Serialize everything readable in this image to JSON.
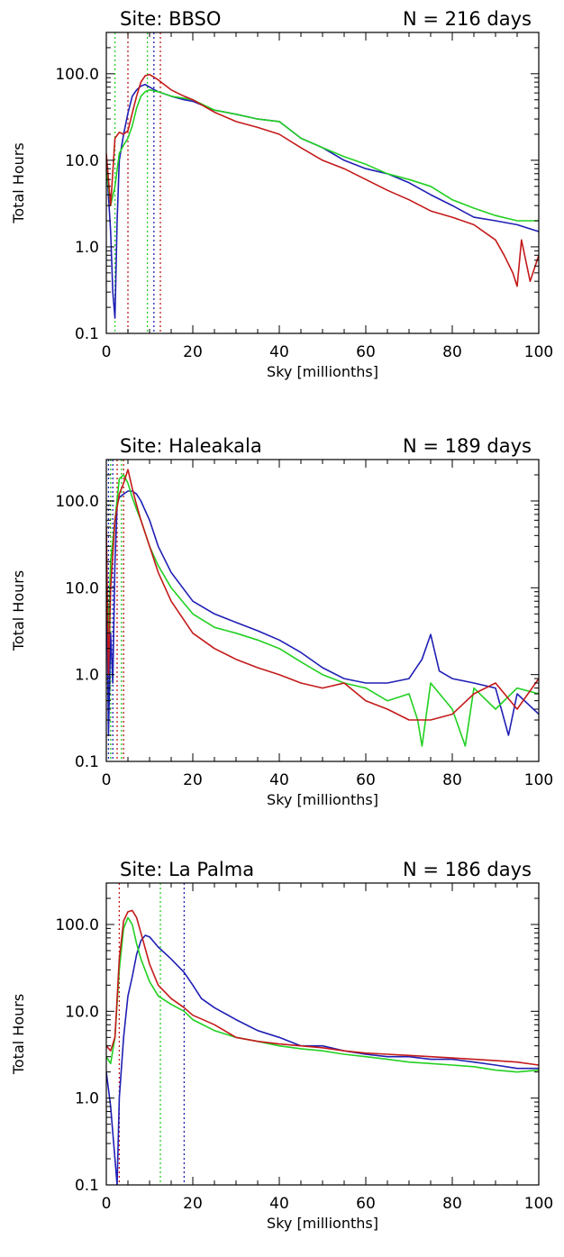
{
  "colors": {
    "blue": "#1f1fb4",
    "green": "#22d022",
    "red": "#c41a1a",
    "axis": "#000000"
  },
  "chart_data": [
    {
      "type": "line",
      "title_left": "Site: BBSO",
      "title_right": "N = 216 days",
      "xlabel": "Sky [millionths]",
      "ylabel": "Total Hours",
      "xlim": [
        0,
        100
      ],
      "ylim": [
        0.1,
        300
      ],
      "yscale": "log",
      "xticks": [
        0,
        20,
        40,
        60,
        80,
        100
      ],
      "xtick_labels": [
        "0",
        "20",
        "40",
        "60",
        "80",
        "100"
      ],
      "yticks": [
        0.1,
        1,
        10,
        100
      ],
      "ytick_labels": [
        "0.1",
        "1.0",
        "10.0",
        "100.0"
      ],
      "grid": false,
      "vlines": [
        {
          "color": "green",
          "x": 2
        },
        {
          "color": "red",
          "x": 5
        },
        {
          "color": "green",
          "x": 9.5
        },
        {
          "color": "blue",
          "x": 11
        },
        {
          "color": "red",
          "x": 12.5
        }
      ],
      "series": [
        {
          "color": "blue",
          "x": [
            0,
            1,
            1.5,
            2,
            2.5,
            3,
            4,
            5,
            6,
            7,
            8,
            9,
            10,
            12,
            15,
            18,
            20,
            25,
            30,
            35,
            40,
            45,
            50,
            55,
            60,
            65,
            70,
            75,
            80,
            85,
            90,
            95,
            100
          ],
          "values": [
            10,
            1.5,
            0.3,
            0.15,
            2,
            10,
            20,
            35,
            55,
            65,
            72,
            75,
            70,
            62,
            55,
            50,
            48,
            38,
            34,
            30,
            28,
            18,
            14,
            10,
            8,
            7,
            5.5,
            4,
            3,
            2.2,
            2,
            1.8,
            1.5
          ]
        },
        {
          "color": "green",
          "x": [
            0,
            1,
            2,
            3,
            4,
            5,
            6,
            7,
            8,
            9,
            10,
            12,
            15,
            18,
            20,
            25,
            30,
            35,
            40,
            45,
            50,
            55,
            60,
            65,
            70,
            75,
            80,
            85,
            90,
            95,
            100
          ],
          "values": [
            8,
            3,
            5,
            12,
            15,
            18,
            25,
            40,
            55,
            62,
            65,
            62,
            55,
            52,
            50,
            38,
            34,
            30,
            28,
            18,
            14,
            11,
            9,
            7,
            6,
            5,
            3.5,
            2.8,
            2.3,
            2,
            2
          ]
        },
        {
          "color": "red",
          "x": [
            0,
            1,
            2,
            3,
            4,
            5,
            6,
            7,
            8,
            9,
            10,
            12,
            15,
            18,
            20,
            25,
            30,
            35,
            40,
            45,
            50,
            55,
            60,
            65,
            70,
            75,
            80,
            85,
            90,
            92,
            94,
            95,
            96,
            98,
            100
          ],
          "values": [
            12,
            3,
            18,
            21,
            20,
            22,
            35,
            55,
            80,
            95,
            98,
            85,
            65,
            55,
            50,
            36,
            28,
            24,
            20,
            14,
            10,
            8,
            6,
            4.5,
            3.5,
            2.6,
            2.2,
            1.8,
            1.2,
            0.8,
            0.5,
            0.35,
            1.2,
            0.4,
            0.8
          ]
        }
      ]
    },
    {
      "type": "line",
      "title_left": "Site: Haleakala",
      "title_right": "N = 189 days",
      "xlabel": "Sky [millionths]",
      "ylabel": "Total Hours",
      "xlim": [
        0,
        100
      ],
      "ylim": [
        0.1,
        300
      ],
      "yscale": "log",
      "xticks": [
        0,
        20,
        40,
        60,
        80,
        100
      ],
      "xtick_labels": [
        "0",
        "20",
        "40",
        "60",
        "80",
        "100"
      ],
      "yticks": [
        0.1,
        1,
        10,
        100
      ],
      "ytick_labels": [
        "0.1",
        "1.0",
        "10.0",
        "100.0"
      ],
      "grid": false,
      "vlines": [
        {
          "color": "blue",
          "x": 0.5
        },
        {
          "color": "green",
          "x": 1
        },
        {
          "color": "blue",
          "x": 1.5
        },
        {
          "color": "red",
          "x": 2.5
        },
        {
          "color": "green",
          "x": 3.5
        },
        {
          "color": "red",
          "x": 4
        }
      ],
      "series": [
        {
          "color": "blue",
          "x": [
            0,
            0.5,
            1,
            1.5,
            2,
            2.5,
            3,
            4,
            5,
            6,
            7,
            8,
            10,
            12,
            15,
            20,
            25,
            30,
            35,
            40,
            45,
            50,
            55,
            60,
            65,
            70,
            73,
            75,
            77,
            80,
            85,
            90,
            93,
            95,
            100
          ],
          "values": [
            40,
            0.2,
            3,
            0.8,
            20,
            90,
            110,
            120,
            130,
            130,
            120,
            100,
            60,
            30,
            15,
            7,
            5,
            4,
            3.2,
            2.5,
            1.8,
            1.2,
            0.9,
            0.8,
            0.8,
            0.9,
            1.5,
            2.9,
            1.1,
            0.9,
            0.8,
            0.7,
            0.2,
            0.6,
            0.35
          ]
        },
        {
          "color": "green",
          "x": [
            0,
            0.5,
            1,
            2,
            3,
            4,
            5,
            6,
            7,
            8,
            10,
            12,
            15,
            20,
            25,
            30,
            35,
            40,
            45,
            50,
            55,
            60,
            65,
            70,
            72,
            73,
            75,
            80,
            83,
            85,
            90,
            95,
            100
          ],
          "values": [
            15,
            3,
            20,
            60,
            180,
            200,
            160,
            110,
            80,
            60,
            30,
            18,
            10,
            5,
            3.5,
            3,
            2.5,
            2,
            1.4,
            1,
            0.8,
            0.7,
            0.5,
            0.6,
            0.3,
            0.15,
            0.8,
            0.4,
            0.15,
            0.7,
            0.4,
            0.7,
            0.6
          ]
        },
        {
          "color": "red",
          "x": [
            0,
            0.5,
            1,
            2,
            3,
            4,
            5,
            6,
            7,
            8,
            10,
            12,
            15,
            20,
            25,
            30,
            35,
            40,
            45,
            50,
            55,
            60,
            65,
            70,
            75,
            80,
            85,
            90,
            95,
            100
          ],
          "values": [
            50,
            1,
            10,
            60,
            120,
            160,
            230,
            140,
            90,
            60,
            30,
            15,
            7,
            3,
            2,
            1.5,
            1.2,
            1,
            0.8,
            0.7,
            0.8,
            0.5,
            0.4,
            0.3,
            0.3,
            0.35,
            0.6,
            0.8,
            0.4,
            0.9
          ]
        }
      ]
    },
    {
      "type": "line",
      "title_left": "Site: La Palma",
      "title_right": "N = 186 days",
      "xlabel": "Sky [millionths]",
      "ylabel": "Total Hours",
      "xlim": [
        0,
        100
      ],
      "ylim": [
        0.1,
        300
      ],
      "yscale": "log",
      "xticks": [
        0,
        20,
        40,
        60,
        80,
        100
      ],
      "xtick_labels": [
        "0",
        "20",
        "40",
        "60",
        "80",
        "100"
      ],
      "yticks": [
        0.1,
        1,
        10,
        100
      ],
      "ytick_labels": [
        "0.1",
        "1.0",
        "10.0",
        "100.0"
      ],
      "grid": false,
      "vlines": [
        {
          "color": "red",
          "x": 3
        },
        {
          "color": "green",
          "x": 12.5
        },
        {
          "color": "blue",
          "x": 18
        }
      ],
      "series": [
        {
          "color": "blue",
          "x": [
            0,
            1,
            2,
            2.5,
            3,
            4,
            5,
            6,
            7,
            8,
            9,
            10,
            12,
            15,
            18,
            20,
            22,
            25,
            30,
            35,
            40,
            45,
            50,
            55,
            60,
            65,
            70,
            75,
            80,
            85,
            90,
            95,
            100
          ],
          "values": [
            2,
            0.8,
            0.2,
            0.1,
            1,
            5,
            15,
            25,
            45,
            65,
            75,
            72,
            55,
            40,
            28,
            20,
            14,
            11,
            8,
            6,
            5,
            4,
            4,
            3.5,
            3.2,
            3,
            3,
            2.8,
            2.8,
            2.6,
            2.4,
            2.2,
            2.2
          ]
        },
        {
          "color": "green",
          "x": [
            0,
            1,
            2,
            3,
            4,
            5,
            6,
            7,
            8,
            10,
            12,
            15,
            18,
            20,
            25,
            30,
            35,
            40,
            45,
            50,
            55,
            60,
            65,
            70,
            75,
            80,
            85,
            90,
            95,
            100
          ],
          "values": [
            3,
            2.5,
            5,
            30,
            90,
            120,
            100,
            60,
            40,
            22,
            15,
            12,
            10,
            8,
            6,
            5,
            4.5,
            4,
            3.7,
            3.5,
            3.2,
            3,
            2.8,
            2.6,
            2.5,
            2.4,
            2.3,
            2.1,
            2,
            2.1
          ]
        },
        {
          "color": "red",
          "x": [
            0,
            1,
            2,
            3,
            4,
            5,
            6,
            7,
            8,
            10,
            12,
            15,
            18,
            20,
            25,
            30,
            35,
            40,
            45,
            50,
            55,
            60,
            65,
            70,
            75,
            80,
            85,
            90,
            95,
            100
          ],
          "values": [
            4,
            3.5,
            5,
            40,
            110,
            140,
            145,
            120,
            80,
            35,
            20,
            14,
            11,
            9,
            7,
            5,
            4.5,
            4.2,
            4,
            3.8,
            3.5,
            3.3,
            3.2,
            3.1,
            3,
            2.9,
            2.8,
            2.7,
            2.6,
            2.4
          ]
        }
      ]
    }
  ]
}
